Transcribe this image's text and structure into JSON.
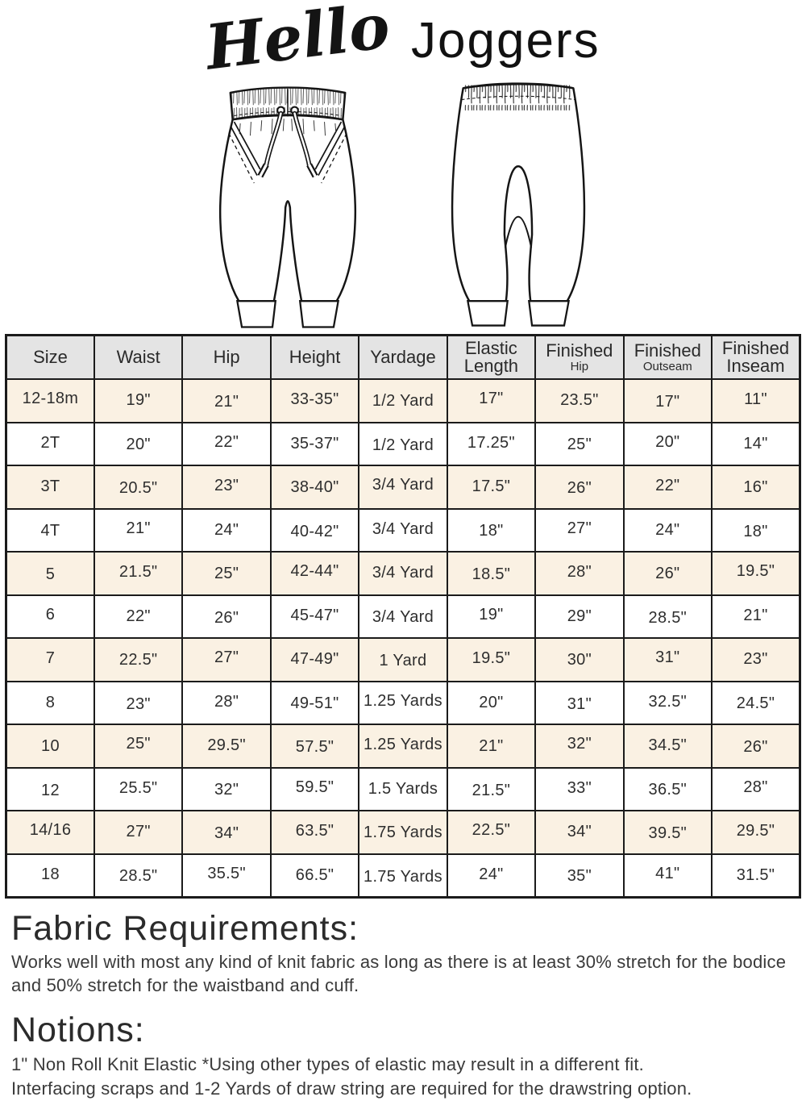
{
  "title": {
    "script": "Hello",
    "rest": "Joggers"
  },
  "illustrations": {
    "front": "joggers-front-technical-drawing",
    "back": "joggers-back-technical-drawing"
  },
  "size_chart": {
    "columns": [
      {
        "label": "Size"
      },
      {
        "label": "Waist"
      },
      {
        "label": "Hip"
      },
      {
        "label": "Height"
      },
      {
        "label": "Yardage"
      },
      {
        "label": "Elastic",
        "sub": "Length",
        "sub_style": "large"
      },
      {
        "label": "Finished",
        "sub": "Hip",
        "sub_style": "small"
      },
      {
        "label": "Finished",
        "sub": "Outseam",
        "sub_style": "small"
      },
      {
        "label": "Finished",
        "sub": "Inseam",
        "sub_style": "large"
      }
    ],
    "rows": [
      [
        "12-18m",
        "19\"",
        "21\"",
        "33-35\"",
        "1/2 Yard",
        "17\"",
        "23.5\"",
        "17\"",
        "11\""
      ],
      [
        "2T",
        "20\"",
        "22\"",
        "35-37\"",
        "1/2 Yard",
        "17.25\"",
        "25\"",
        "20\"",
        "14\""
      ],
      [
        "3T",
        "20.5\"",
        "23\"",
        "38-40\"",
        "3/4 Yard",
        "17.5\"",
        "26\"",
        "22\"",
        "16\""
      ],
      [
        "4T",
        "21\"",
        "24\"",
        "40-42\"",
        "3/4 Yard",
        "18\"",
        "27\"",
        "24\"",
        "18\""
      ],
      [
        "5",
        "21.5\"",
        "25\"",
        "42-44\"",
        "3/4 Yard",
        "18.5\"",
        "28\"",
        "26\"",
        "19.5\""
      ],
      [
        "6",
        "22\"",
        "26\"",
        "45-47\"",
        "3/4 Yard",
        "19\"",
        "29\"",
        "28.5\"",
        "21\""
      ],
      [
        "7",
        "22.5\"",
        "27\"",
        "47-49\"",
        "1 Yard",
        "19.5\"",
        "30\"",
        "31\"",
        "23\""
      ],
      [
        "8",
        "23\"",
        "28\"",
        "49-51\"",
        "1.25 Yards",
        "20\"",
        "31\"",
        "32.5\"",
        "24.5\""
      ],
      [
        "10",
        "25\"",
        "29.5\"",
        "57.5\"",
        "1.25 Yards",
        "21\"",
        "32\"",
        "34.5\"",
        "26\""
      ],
      [
        "12",
        "25.5\"",
        "32\"",
        "59.5\"",
        "1.5 Yards",
        "21.5\"",
        "33\"",
        "36.5\"",
        "28\""
      ],
      [
        "14/16",
        "27\"",
        "34\"",
        "63.5\"",
        "1.75 Yards",
        "22.5\"",
        "34\"",
        "39.5\"",
        "29.5\""
      ],
      [
        "18",
        "28.5\"",
        "35.5\"",
        "66.5\"",
        "1.75 Yards",
        "24\"",
        "35\"",
        "41\"",
        "31.5\""
      ]
    ]
  },
  "sections": {
    "fabric": {
      "heading": "Fabric Requirements:",
      "body": "Works well with most any kind of knit fabric as long as there is at least 30% stretch for the bodice and 50% stretch for the waistband and cuff."
    },
    "notions": {
      "heading": "Notions:",
      "line1": "1\" Non Roll Knit Elastic *Using other types of elastic may result in a different fit.",
      "line2": "Interfacing scraps and 1-2 Yards of draw string are required for the drawstring option."
    }
  },
  "colors": {
    "header_bg": "#e4e4e4",
    "alt_row_bg": "#faf1e3",
    "border": "#1b1b1b",
    "ink": "#151515"
  }
}
